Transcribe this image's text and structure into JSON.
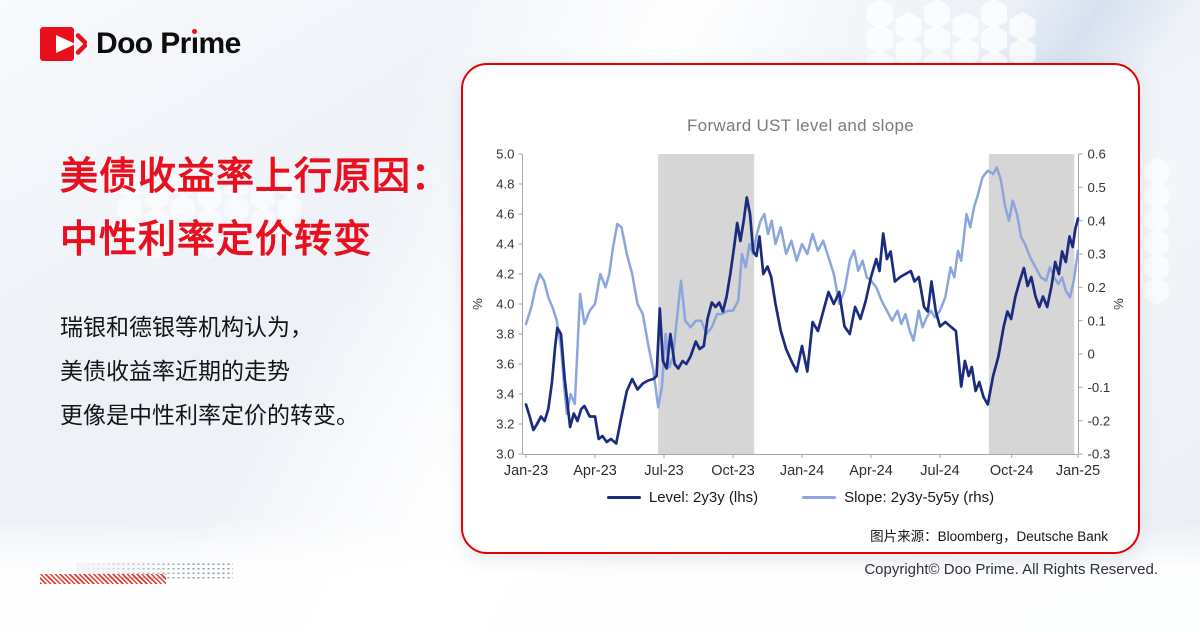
{
  "brand": {
    "logo_part1": "Doo Pr",
    "logo_i": "ı",
    "logo_part2": "me"
  },
  "headline": {
    "line1": "美债收益率上行原因：",
    "line2": "中性利率定价转变"
  },
  "body_text": {
    "lines": [
      "瑞银和德银等机构认为，",
      "美债收益率近期的走势",
      "更像是中性利率定价的转变。"
    ]
  },
  "card": {
    "source_label": "图片来源：Bloomberg，Deutsche Bank"
  },
  "footer": {
    "copyright": "Copyright© Doo Prime. All Rights Reserved."
  },
  "colors": {
    "brand_red": "#e8101c",
    "card_border_red": "#e60000",
    "headline_red": "#e8101e",
    "level_navy": "#1b2c7e",
    "slope_blue": "#8ca5dc",
    "band_gray": "#d6d6d6",
    "axis_gray": "#a6a6a6"
  },
  "chart_data": {
    "type": "line",
    "title": "Forward UST level and slope",
    "left_axis": {
      "label": "%",
      "range": [
        3.0,
        5.0
      ],
      "ticks": [
        "5.0",
        "4.8",
        "4.6",
        "4.4",
        "4.2",
        "4.0",
        "3.8",
        "3.6",
        "3.4",
        "3.2",
        "3.0"
      ]
    },
    "right_axis": {
      "label": "%",
      "range": [
        -0.3,
        0.6
      ],
      "ticks": [
        "0.6",
        "0.5",
        "0.4",
        "0.3",
        "0.2",
        "0.1",
        "0",
        "-0.1",
        "-0.2",
        "-0.3"
      ]
    },
    "x_ticks": [
      "Jan-23",
      "Apr-23",
      "Jul-23",
      "Oct-23",
      "Jan-24",
      "Apr-24",
      "Jul-24",
      "Oct-24",
      "Jan-25"
    ],
    "x_tick_weeks": [
      0,
      13,
      26,
      39,
      52,
      65,
      78,
      91.5,
      104
    ],
    "x_domain_weeks": [
      0,
      104
    ],
    "shaded_bands_weeks": [
      [
        24.9,
        43.0
      ],
      [
        87.2,
        103.3
      ]
    ],
    "series": [
      {
        "name": "Level: 2y3y (lhs)",
        "axis": "left",
        "color": "#1b2c7e",
        "width": 2.7,
        "points": [
          [
            0,
            3.33
          ],
          [
            0.7,
            3.25
          ],
          [
            1.4,
            3.16
          ],
          [
            2.1,
            3.2
          ],
          [
            2.8,
            3.25
          ],
          [
            3.5,
            3.22
          ],
          [
            4.2,
            3.3
          ],
          [
            4.9,
            3.48
          ],
          [
            5.5,
            3.72
          ],
          [
            5.9,
            3.84
          ],
          [
            6.6,
            3.8
          ],
          [
            7.3,
            3.5
          ],
          [
            8.3,
            3.18
          ],
          [
            9,
            3.27
          ],
          [
            9.7,
            3.22
          ],
          [
            10.4,
            3.3
          ],
          [
            11,
            3.32
          ],
          [
            12,
            3.25
          ],
          [
            13,
            3.25
          ],
          [
            13.7,
            3.1
          ],
          [
            14.4,
            3.12
          ],
          [
            15.2,
            3.08
          ],
          [
            16,
            3.1
          ],
          [
            17,
            3.07
          ],
          [
            18,
            3.25
          ],
          [
            19,
            3.42
          ],
          [
            20,
            3.5
          ],
          [
            21,
            3.43
          ],
          [
            22,
            3.47
          ],
          [
            23,
            3.49
          ],
          [
            24,
            3.5
          ],
          [
            24.6,
            3.52
          ],
          [
            25.2,
            3.97
          ],
          [
            25.8,
            3.62
          ],
          [
            26.5,
            3.57
          ],
          [
            27.2,
            3.8
          ],
          [
            28,
            3.6
          ],
          [
            28.7,
            3.57
          ],
          [
            29.5,
            3.62
          ],
          [
            30.2,
            3.6
          ],
          [
            31,
            3.65
          ],
          [
            32,
            3.75
          ],
          [
            32.7,
            3.7
          ],
          [
            33.5,
            3.72
          ],
          [
            34.2,
            3.9
          ],
          [
            35,
            4.01
          ],
          [
            35.7,
            3.98
          ],
          [
            36.4,
            4.01
          ],
          [
            37.1,
            3.95
          ],
          [
            37.8,
            4.05
          ],
          [
            38.5,
            4.2
          ],
          [
            39.2,
            4.38
          ],
          [
            39.8,
            4.54
          ],
          [
            40.4,
            4.42
          ],
          [
            41,
            4.55
          ],
          [
            41.6,
            4.71
          ],
          [
            42.2,
            4.6
          ],
          [
            42.8,
            4.35
          ],
          [
            43.4,
            4.32
          ],
          [
            44,
            4.45
          ],
          [
            44.7,
            4.2
          ],
          [
            45.5,
            4.25
          ],
          [
            46.2,
            4.18
          ],
          [
            47,
            4.0
          ],
          [
            48,
            3.82
          ],
          [
            49,
            3.7
          ],
          [
            50,
            3.62
          ],
          [
            51,
            3.55
          ],
          [
            52,
            3.72
          ],
          [
            53,
            3.55
          ],
          [
            54,
            3.88
          ],
          [
            55,
            3.82
          ],
          [
            56,
            3.95
          ],
          [
            57,
            4.08
          ],
          [
            58,
            4.0
          ],
          [
            59,
            4.08
          ],
          [
            60,
            3.85
          ],
          [
            61,
            3.8
          ],
          [
            62,
            3.98
          ],
          [
            63,
            3.9
          ],
          [
            64,
            4.02
          ],
          [
            65,
            4.18
          ],
          [
            66,
            4.3
          ],
          [
            66.6,
            4.22
          ],
          [
            67.3,
            4.47
          ],
          [
            68,
            4.3
          ],
          [
            68.7,
            4.35
          ],
          [
            69.5,
            4.15
          ],
          [
            70.5,
            4.18
          ],
          [
            71.5,
            4.2
          ],
          [
            72.5,
            4.22
          ],
          [
            73.2,
            4.15
          ],
          [
            74,
            4.18
          ],
          [
            75,
            3.98
          ],
          [
            75.7,
            3.95
          ],
          [
            76.4,
            4.15
          ],
          [
            77.2,
            3.95
          ],
          [
            78,
            3.85
          ],
          [
            79,
            3.88
          ],
          [
            80,
            3.85
          ],
          [
            81,
            3.82
          ],
          [
            82,
            3.45
          ],
          [
            82.7,
            3.62
          ],
          [
            83.4,
            3.52
          ],
          [
            84,
            3.58
          ],
          [
            84.7,
            3.42
          ],
          [
            85.4,
            3.48
          ],
          [
            86.2,
            3.38
          ],
          [
            87,
            3.33
          ],
          [
            88,
            3.52
          ],
          [
            89,
            3.65
          ],
          [
            90,
            3.85
          ],
          [
            90.7,
            3.95
          ],
          [
            91.4,
            3.9
          ],
          [
            92.2,
            4.05
          ],
          [
            93,
            4.15
          ],
          [
            93.8,
            4.24
          ],
          [
            94.5,
            4.12
          ],
          [
            95.2,
            4.18
          ],
          [
            96,
            4.05
          ],
          [
            96.7,
            3.98
          ],
          [
            97.4,
            4.05
          ],
          [
            98.2,
            3.98
          ],
          [
            99,
            4.12
          ],
          [
            99.7,
            4.28
          ],
          [
            100.4,
            4.2
          ],
          [
            101,
            4.35
          ],
          [
            101.7,
            4.28
          ],
          [
            102.4,
            4.45
          ],
          [
            103,
            4.38
          ],
          [
            103.5,
            4.5
          ],
          [
            104,
            4.57
          ]
        ]
      },
      {
        "name": "Slope: 2y3y-5y5y (rhs)",
        "axis": "right",
        "color": "#8ca5dc",
        "width": 2.5,
        "points": [
          [
            0,
            0.09
          ],
          [
            1,
            0.14
          ],
          [
            1.8,
            0.2
          ],
          [
            2.6,
            0.24
          ],
          [
            3.4,
            0.22
          ],
          [
            4.2,
            0.17
          ],
          [
            5,
            0.14
          ],
          [
            5.8,
            0.1
          ],
          [
            6.6,
            0.02
          ],
          [
            7.2,
            -0.1
          ],
          [
            7.7,
            -0.18
          ],
          [
            8.4,
            -0.12
          ],
          [
            9.2,
            -0.15
          ],
          [
            10.2,
            0.18
          ],
          [
            11,
            0.09
          ],
          [
            12,
            0.13
          ],
          [
            13,
            0.15
          ],
          [
            14,
            0.24
          ],
          [
            15,
            0.2
          ],
          [
            15.7,
            0.24
          ],
          [
            16.4,
            0.32
          ],
          [
            17.2,
            0.39
          ],
          [
            18,
            0.38
          ],
          [
            19,
            0.3
          ],
          [
            20,
            0.24
          ],
          [
            21,
            0.15
          ],
          [
            22,
            0.12
          ],
          [
            23,
            0.03
          ],
          [
            24,
            -0.05
          ],
          [
            24.9,
            -0.16
          ],
          [
            25.6,
            -0.1
          ],
          [
            26.3,
            0.06
          ],
          [
            27,
            -0.04
          ],
          [
            27.7,
            -0.01
          ],
          [
            28.4,
            0.1
          ],
          [
            29.2,
            0.22
          ],
          [
            30,
            0.1
          ],
          [
            31,
            0.08
          ],
          [
            32,
            0.1
          ],
          [
            33,
            0.1
          ],
          [
            34,
            0.06
          ],
          [
            35,
            0.08
          ],
          [
            36,
            0.12
          ],
          [
            37,
            0.12
          ],
          [
            38,
            0.13
          ],
          [
            39,
            0.13
          ],
          [
            40,
            0.16
          ],
          [
            40.7,
            0.3
          ],
          [
            41.4,
            0.26
          ],
          [
            42.1,
            0.33
          ],
          [
            42.8,
            0.3
          ],
          [
            43.5,
            0.36
          ],
          [
            44.2,
            0.4
          ],
          [
            44.9,
            0.42
          ],
          [
            45.6,
            0.36
          ],
          [
            46.3,
            0.4
          ],
          [
            47,
            0.33
          ],
          [
            48,
            0.38
          ],
          [
            49,
            0.3
          ],
          [
            50,
            0.34
          ],
          [
            51,
            0.28
          ],
          [
            52,
            0.33
          ],
          [
            53,
            0.3
          ],
          [
            54,
            0.36
          ],
          [
            55,
            0.31
          ],
          [
            56,
            0.34
          ],
          [
            57,
            0.29
          ],
          [
            58,
            0.24
          ],
          [
            59,
            0.15
          ],
          [
            60,
            0.19
          ],
          [
            61,
            0.28
          ],
          [
            61.8,
            0.31
          ],
          [
            62.6,
            0.25
          ],
          [
            63.4,
            0.28
          ],
          [
            64.2,
            0.23
          ],
          [
            65,
            0.22
          ],
          [
            66,
            0.2
          ],
          [
            67,
            0.16
          ],
          [
            68,
            0.13
          ],
          [
            69,
            0.1
          ],
          [
            70,
            0.13
          ],
          [
            70.7,
            0.09
          ],
          [
            71.5,
            0.12
          ],
          [
            72.3,
            0.07
          ],
          [
            73,
            0.04
          ],
          [
            74,
            0.13
          ],
          [
            74.7,
            0.08
          ],
          [
            75.5,
            0.11
          ],
          [
            76.3,
            0.13
          ],
          [
            77,
            0.11
          ],
          [
            78,
            0.13
          ],
          [
            79,
            0.17
          ],
          [
            80,
            0.26
          ],
          [
            80.7,
            0.23
          ],
          [
            81.4,
            0.31
          ],
          [
            82,
            0.28
          ],
          [
            83,
            0.42
          ],
          [
            83.7,
            0.38
          ],
          [
            84.4,
            0.44
          ],
          [
            85,
            0.47
          ],
          [
            86,
            0.53
          ],
          [
            87,
            0.55
          ],
          [
            88,
            0.54
          ],
          [
            88.7,
            0.56
          ],
          [
            89.5,
            0.52
          ],
          [
            90.3,
            0.44
          ],
          [
            91,
            0.4
          ],
          [
            91.7,
            0.46
          ],
          [
            92.5,
            0.42
          ],
          [
            93.3,
            0.35
          ],
          [
            94,
            0.33
          ],
          [
            95,
            0.29
          ],
          [
            96,
            0.26
          ],
          [
            97,
            0.23
          ],
          [
            98,
            0.22
          ],
          [
            98.7,
            0.26
          ],
          [
            99.5,
            0.23
          ],
          [
            100.3,
            0.21
          ],
          [
            101,
            0.23
          ],
          [
            101.7,
            0.19
          ],
          [
            102.5,
            0.17
          ],
          [
            103.2,
            0.22
          ],
          [
            104,
            0.31
          ]
        ]
      }
    ],
    "legend_position": "bottom",
    "grid": false
  }
}
